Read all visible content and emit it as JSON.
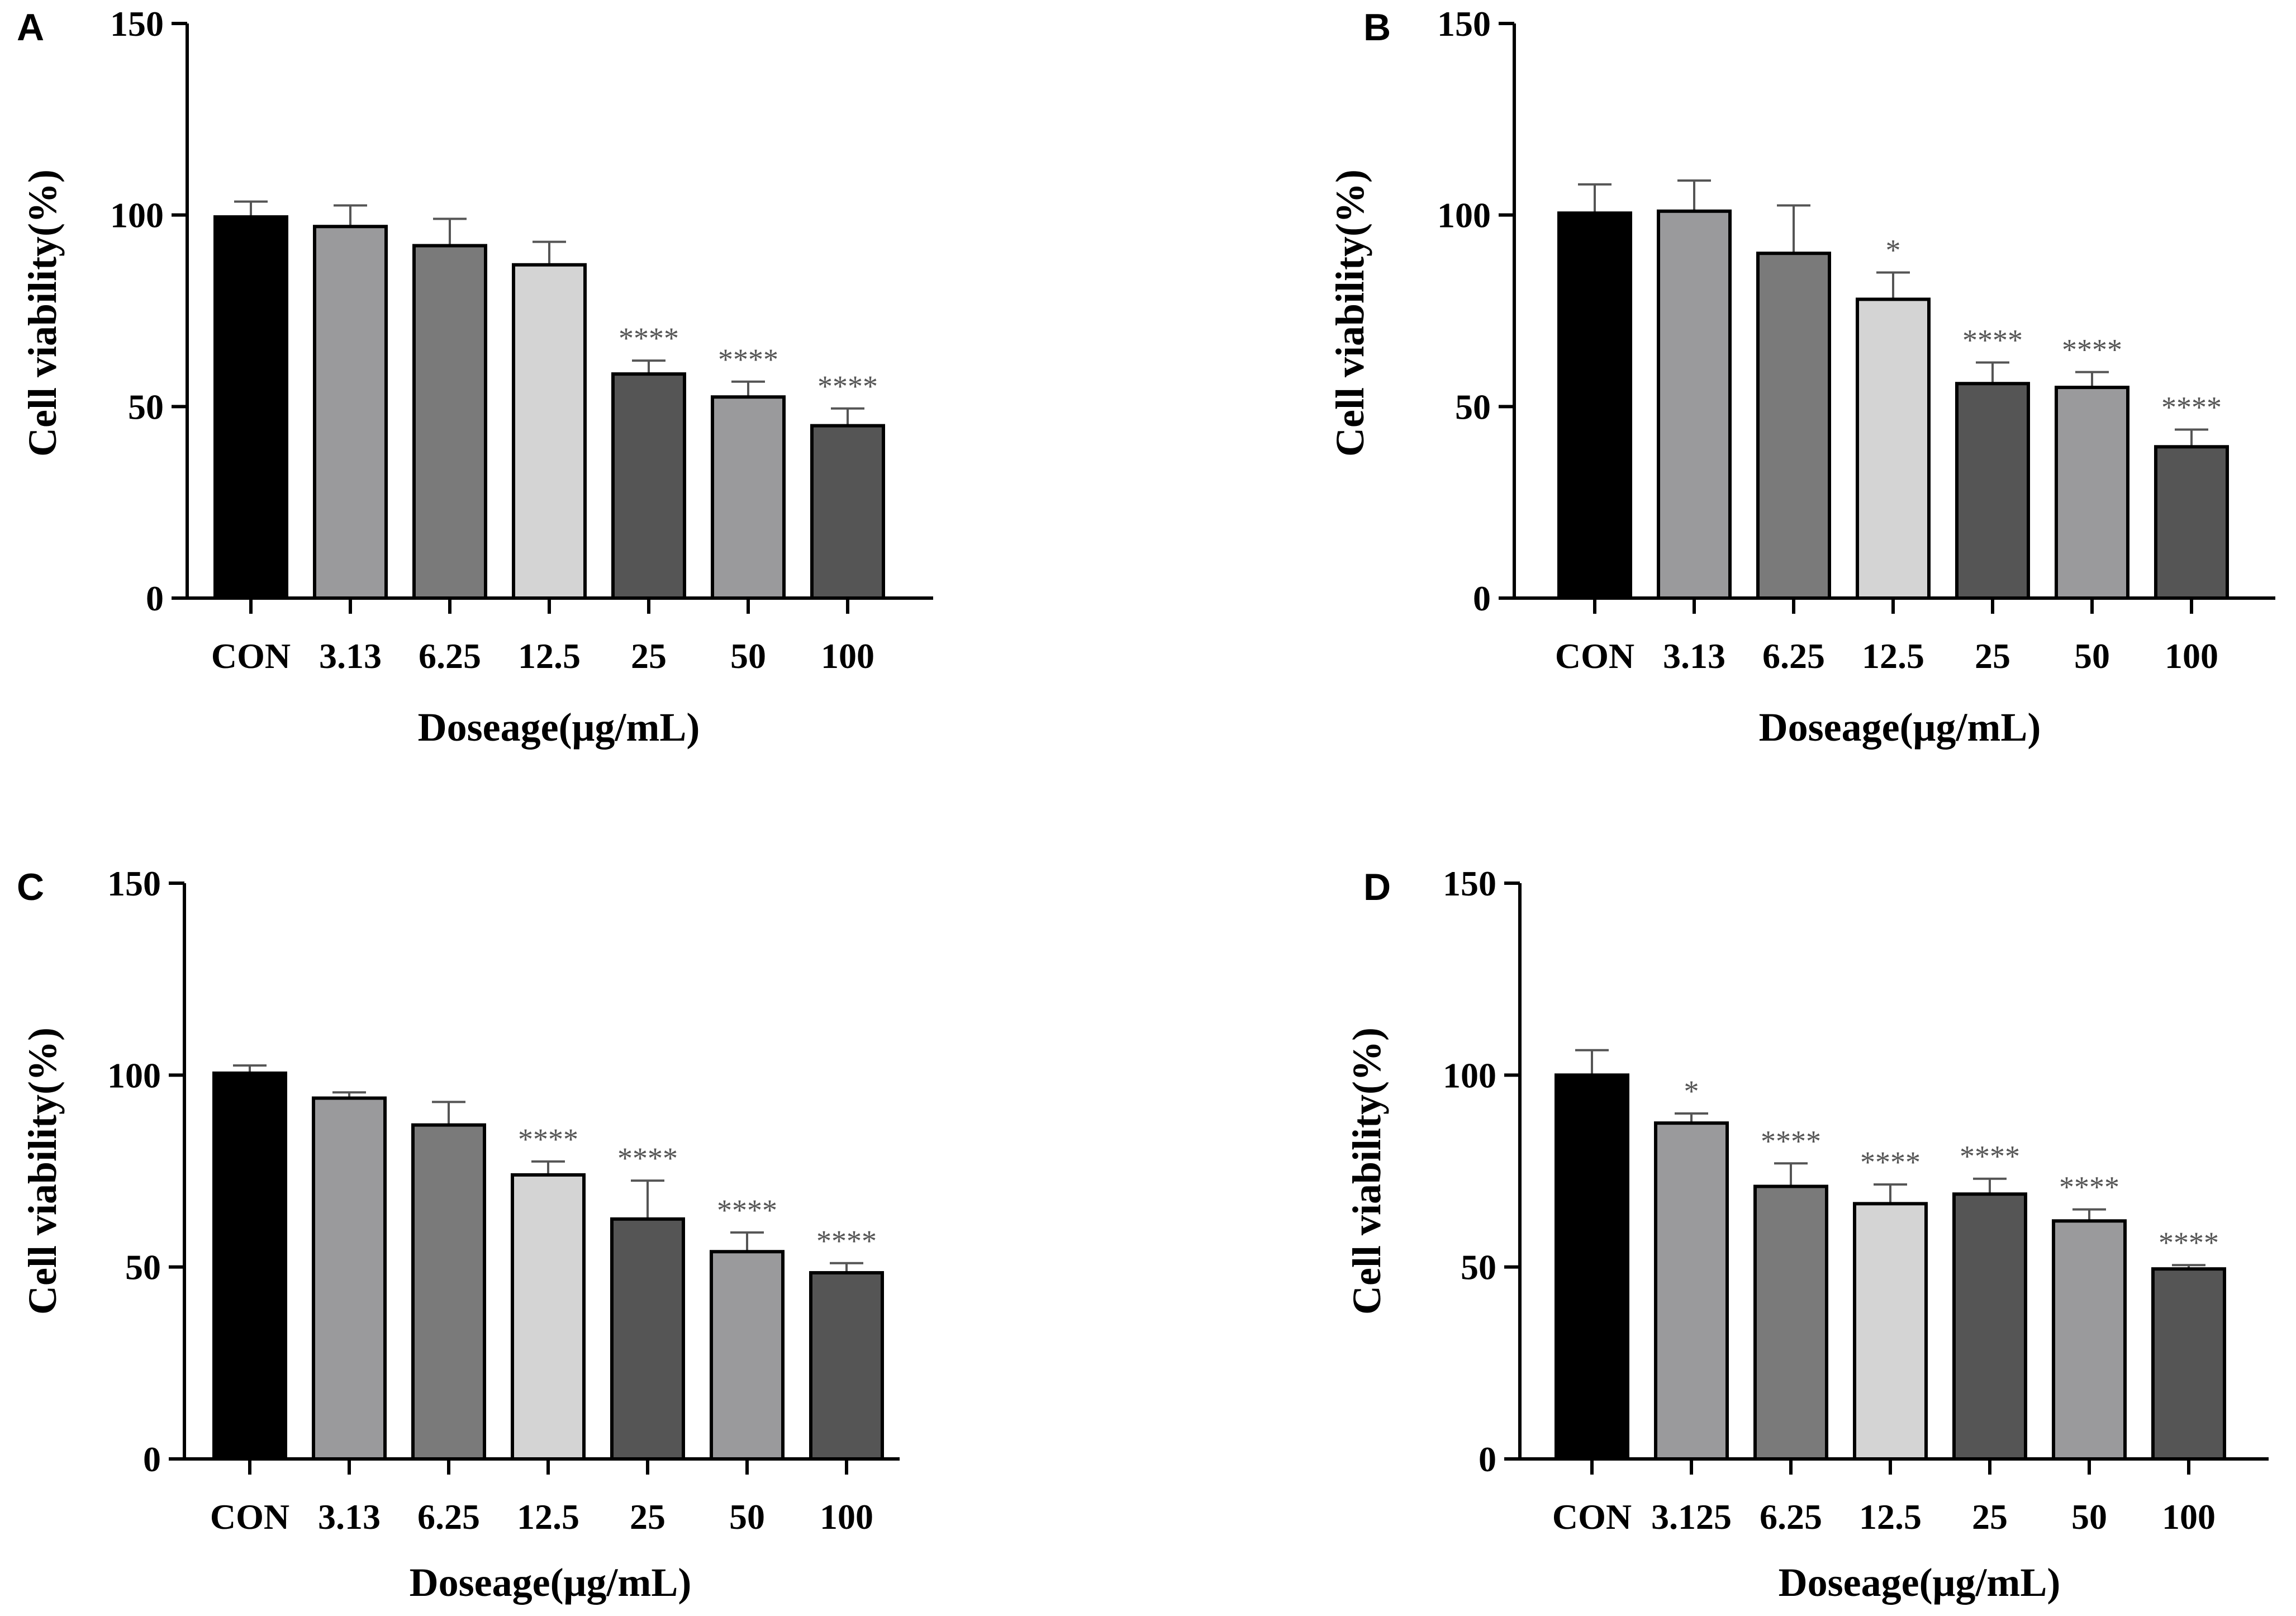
{
  "colors": {
    "axis": "#000000",
    "significance": "#555555",
    "bar_palette": [
      "#000000",
      "#9a9a9c",
      "#7a7a7a",
      "#d4d4d4",
      "#555555",
      "#9a9a9c",
      "#555555"
    ]
  },
  "chart_data": [
    {
      "panel": "A",
      "type": "bar",
      "title": "",
      "xlabel": "Doseage(μg/mL)",
      "ylabel": "Cell viability(%)",
      "ylim": [
        0,
        150
      ],
      "yticks": [
        "0",
        "50",
        "100",
        "150"
      ],
      "categories": [
        "CON",
        "3.13",
        "6.25",
        "12.5",
        "25",
        "50",
        "100"
      ],
      "values": [
        99.5,
        97,
        92,
        87,
        58.5,
        52.5,
        45
      ],
      "errors": [
        4,
        5.5,
        7,
        6,
        3.5,
        4,
        4.5
      ],
      "significance": [
        "",
        "",
        "",
        "",
        "****",
        "****",
        "****"
      ]
    },
    {
      "panel": "B",
      "type": "bar",
      "title": "",
      "xlabel": "Doseage(μg/mL)",
      "ylabel": "Cell viability(%)",
      "ylim": [
        0,
        150
      ],
      "yticks": [
        "0",
        "50",
        "100",
        "150"
      ],
      "categories": [
        "CON",
        "3.13",
        "6.25",
        "12.5",
        "25",
        "50",
        "100"
      ],
      "values": [
        100.5,
        101,
        90,
        78,
        56,
        55,
        39.5
      ],
      "errors": [
        7.5,
        8,
        12.5,
        7,
        5.5,
        4,
        4.5
      ],
      "significance": [
        "",
        "",
        "",
        "*",
        "****",
        "****",
        "****"
      ]
    },
    {
      "panel": "C",
      "type": "bar",
      "title": "",
      "xlabel": "Doseage(μg/mL)",
      "ylabel": "Cell viability(%)",
      "ylim": [
        0,
        150
      ],
      "yticks": [
        "0",
        "50",
        "100",
        "150"
      ],
      "categories": [
        "CON",
        "3.13",
        "6.25",
        "12.5",
        "25",
        "50",
        "100"
      ],
      "values": [
        100.5,
        94,
        87,
        74,
        62.5,
        54,
        48.5
      ],
      "errors": [
        2,
        1.5,
        6,
        3.5,
        10,
        5,
        2.5
      ],
      "significance": [
        "",
        "",
        "",
        "****",
        "****",
        "****",
        "****"
      ]
    },
    {
      "panel": "D",
      "type": "bar",
      "title": "",
      "xlabel": "Doseage(μg/mL)",
      "ylabel": "Cell viability(%)",
      "ylim": [
        0,
        150
      ],
      "yticks": [
        "0",
        "50",
        "100",
        "150"
      ],
      "categories": [
        "CON",
        "3.125",
        "6.25",
        "12.5",
        "25",
        "50",
        "100"
      ],
      "values": [
        100,
        87.5,
        71,
        66.5,
        69,
        62,
        49.5
      ],
      "errors": [
        6.5,
        2.5,
        6,
        5,
        4,
        3,
        1
      ],
      "significance": [
        "",
        "*",
        "****",
        "****",
        "****",
        "****",
        "****"
      ]
    }
  ]
}
